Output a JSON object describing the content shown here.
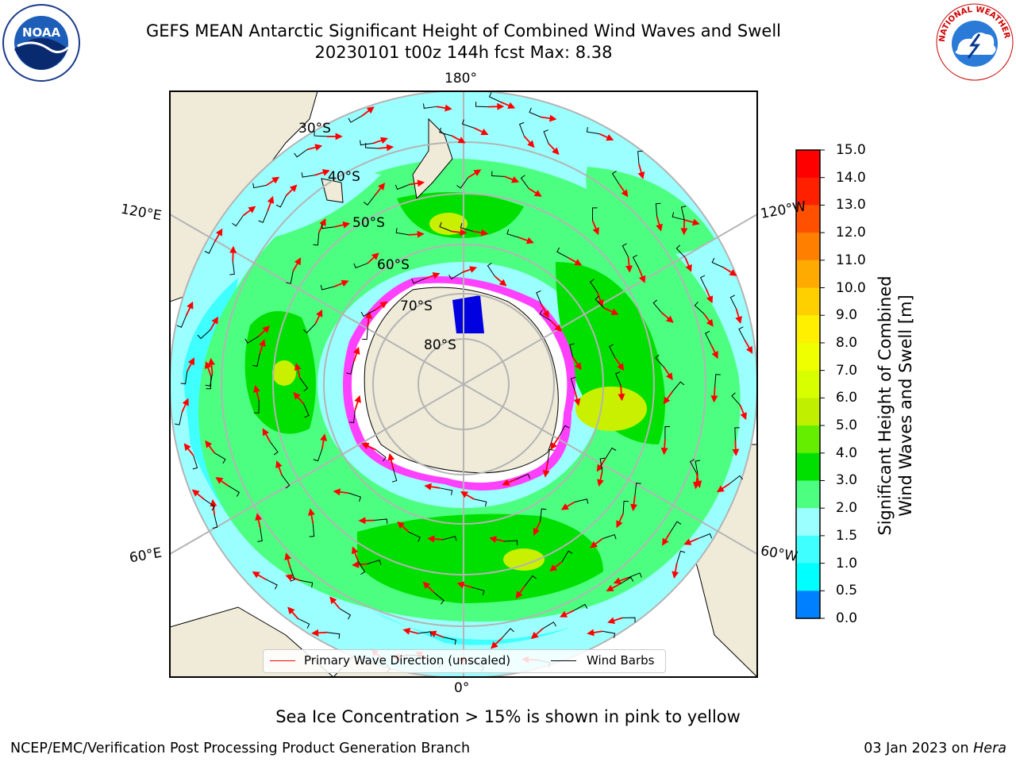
{
  "title": {
    "line1": "GEFS MEAN Antarctic Significant Height of Combined Wind Waves and Swell",
    "line2": "20230101 t00z 144h fcst   Max: 8.38"
  },
  "map": {
    "projection": "south-polar-stereographic",
    "lon_labels": {
      "top": "180°",
      "bottom": "0°",
      "upper_left": "120°E",
      "upper_right": "120°W",
      "lower_left": "60°E",
      "lower_right": "60°W"
    },
    "lat_labels": [
      "30°S",
      "40°S",
      "50°S",
      "60°S",
      "70°S",
      "80°S"
    ],
    "colors": {
      "land": "#efebd8",
      "ocean_low": "#9bffff",
      "ocean_mid": "#4dff80",
      "ocean_high": "#00e000",
      "ocean_peak": "#c8f000",
      "ice_edge": "#ff40ff",
      "wave_arrow": "#ff0000",
      "wind_barb": "#000000"
    }
  },
  "legend": {
    "wave_direction": "Primary Wave Direction (unscaled)",
    "wind_barbs": "Wind Barbs"
  },
  "colorbar": {
    "title_line1": "Significant Height of Combined",
    "title_line2": "Wind Waves and Swell [m]",
    "ticks": [
      "15.0",
      "14.0",
      "13.0",
      "12.0",
      "11.0",
      "10.0",
      "9.0",
      "8.0",
      "7.0",
      "6.0",
      "5.0",
      "4.0",
      "3.0",
      "2.0",
      "1.5",
      "1.0",
      "0.5",
      "0.0"
    ],
    "colors": [
      "#ff0000",
      "#ff2000",
      "#ff5000",
      "#ff8000",
      "#ffaa00",
      "#ffd000",
      "#fff000",
      "#f0ff00",
      "#d8ff00",
      "#c0f000",
      "#66ee00",
      "#00e000",
      "#4dff80",
      "#9bffff",
      "#40ffff",
      "#00ffff",
      "#0080ff",
      "#0000ff"
    ]
  },
  "note": "Sea Ice Concentration > 15% is shown in pink to yellow",
  "footer": {
    "left": "NCEP/EMC/Verification Post Processing Product Generation Branch",
    "right_prefix": "03 Jan 2023 on ",
    "right_host": "Hera"
  },
  "logos": {
    "left": "NOAA",
    "right": "NATIONAL WEATHER SERVICE"
  }
}
